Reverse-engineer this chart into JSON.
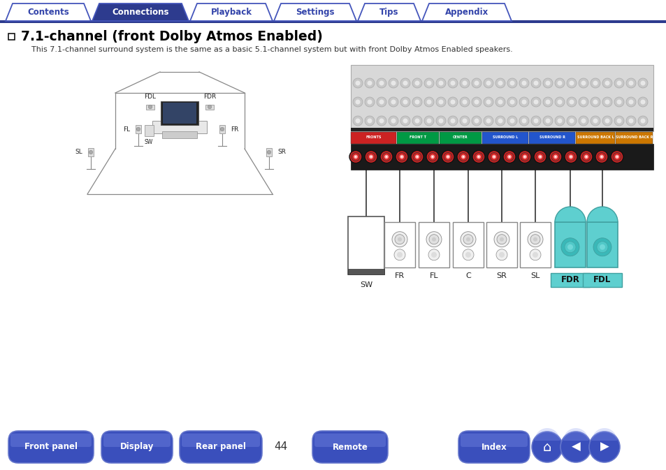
{
  "title": "7.1-channel (front Dolby Atmos Enabled)",
  "subtitle": "This 7.1-channel surround system is the same as a basic 5.1-channel system but with front Dolby Atmos Enabled speakers.",
  "page_number": "44",
  "tab_labels": [
    "Contents",
    "Connections",
    "Playback",
    "Settings",
    "Tips",
    "Appendix"
  ],
  "active_tab": 1,
  "bottom_buttons": [
    "Front panel",
    "Display",
    "Rear panel",
    "Remote",
    "Index"
  ],
  "tab_color_active": "#2d3b8e",
  "tab_color_inactive_bg": "#ffffff",
  "tab_border_color": "#4455bb",
  "tab_text_active": "#ffffff",
  "tab_text_inactive": "#3344aa",
  "bottom_btn_color": "#3a4fbc",
  "bg_color": "#ffffff",
  "header_line_color": "#2d3b8e",
  "title_text_color": "#000000",
  "subtitle_text_color": "#333333",
  "teal_color": "#5ecfcf",
  "teal_dark": "#40b0b0",
  "teal_label_bg": "#5ecfcf",
  "panel_color_fronts": "#cc2222",
  "panel_color_frontt": "#009944",
  "panel_color_center": "#009944",
  "panel_color_surround": "#2255cc",
  "panel_color_surround_back": "#cc7700",
  "spk_labels_bottom": [
    "SW",
    "FR",
    "FL",
    "C",
    "SR",
    "SL",
    "FDR",
    "FDL"
  ],
  "spk_highlighted": [
    false,
    false,
    false,
    false,
    false,
    false,
    true,
    true
  ],
  "room_lc": "#888888",
  "room_lw": 0.9
}
